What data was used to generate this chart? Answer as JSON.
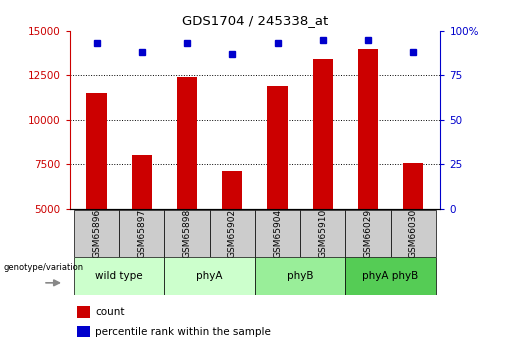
{
  "title": "GDS1704 / 245338_at",
  "samples": [
    "GSM65896",
    "GSM65897",
    "GSM65898",
    "GSM65902",
    "GSM65904",
    "GSM65910",
    "GSM66029",
    "GSM66030"
  ],
  "counts": [
    11500,
    8000,
    12400,
    7100,
    11900,
    13400,
    14000,
    7600
  ],
  "percentile_ranks": [
    93,
    88,
    93,
    87,
    93,
    95,
    95,
    88
  ],
  "groups": [
    {
      "label": "wild type",
      "start": 0,
      "end": 1,
      "color": "#ccffcc"
    },
    {
      "label": "phyA",
      "start": 2,
      "end": 3,
      "color": "#ccffcc"
    },
    {
      "label": "phyB",
      "start": 4,
      "end": 5,
      "color": "#99ee99"
    },
    {
      "label": "phyA phyB",
      "start": 6,
      "end": 7,
      "color": "#55cc55"
    }
  ],
  "ylim_left": [
    5000,
    15000
  ],
  "ylim_right": [
    0,
    100
  ],
  "yticks_left": [
    5000,
    7500,
    10000,
    12500,
    15000
  ],
  "yticks_right": [
    0,
    25,
    50,
    75,
    100
  ],
  "bar_color": "#cc0000",
  "dot_color": "#0000cc",
  "bar_width": 0.45,
  "grid_color": "#000000",
  "label_box_color": "#cccccc",
  "genotype_label": "genotype/variation",
  "legend_count_label": "count",
  "legend_pct_label": "percentile rank within the sample",
  "right_tick_labels": [
    "0",
    "25",
    "50",
    "75",
    "100%"
  ]
}
